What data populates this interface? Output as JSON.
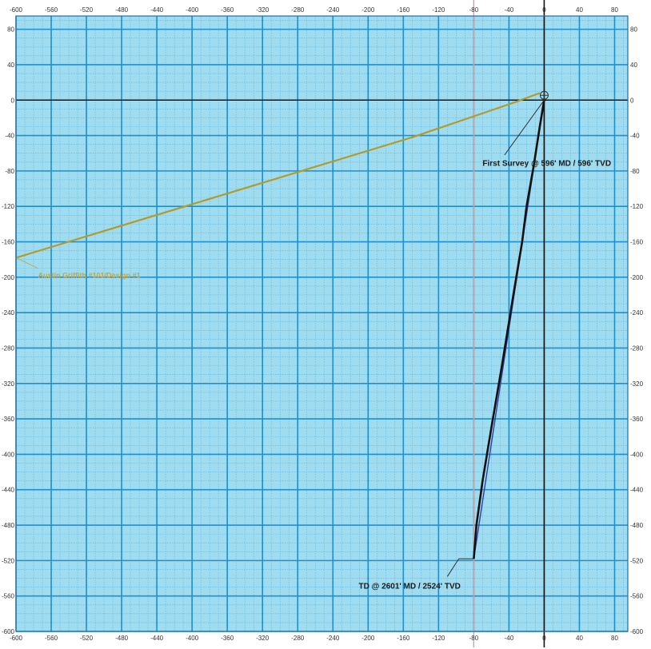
{
  "chart_data": {
    "type": "line",
    "title": "",
    "xlabel": "",
    "ylabel": "",
    "xlim": [
      -600,
      95
    ],
    "ylim": [
      -600,
      95
    ],
    "grid": true,
    "x_ticks": [
      -600,
      -560,
      -520,
      -480,
      -440,
      -400,
      -360,
      -320,
      -280,
      -240,
      -200,
      -160,
      -120,
      -80,
      -40,
      0,
      40,
      80
    ],
    "y_ticks": [
      80,
      40,
      0,
      -40,
      -80,
      -120,
      -160,
      -200,
      -240,
      -280,
      -320,
      -360,
      -400,
      -440,
      -480,
      -520,
      -560,
      -600
    ],
    "vertical_reference_x": -80,
    "series": [
      {
        "color": "#b59a2a",
        "points": [
          [
            -600,
            -178
          ],
          [
            -150,
            -42
          ],
          [
            -35,
            -3
          ],
          [
            -5,
            8
          ]
        ]
      },
      {
        "color": "#2b3fa8",
        "points": [
          [
            0,
            0
          ],
          [
            -40,
            -258
          ],
          [
            -80,
            -518
          ]
        ]
      },
      {
        "color": "#111111",
        "points": [
          [
            0,
            0
          ],
          [
            -5,
            -30
          ],
          [
            -12,
            -75
          ],
          [
            -20,
            -120
          ],
          [
            -25,
            -160
          ],
          [
            -35,
            -220
          ],
          [
            -48,
            -300
          ],
          [
            -60,
            -370
          ],
          [
            -70,
            -430
          ],
          [
            -77,
            -480
          ],
          [
            -80,
            -518
          ]
        ]
      }
    ],
    "annotations": [
      {
        "text": "First Survey @ 596' MD / 596' TVD",
        "point": [
          0,
          0
        ],
        "label_anchor": [
          -70,
          -65
        ]
      },
      {
        "text": "TD @ 2601' MD / 2524' TVD",
        "point": [
          -80,
          -518
        ],
        "label_anchor": [
          -95,
          -548
        ]
      },
      {
        "text": "Austin Griffith #101/Design #1",
        "point": [
          -600,
          -178
        ],
        "label_anchor": [
          -575,
          -195
        ]
      }
    ]
  },
  "colors": {
    "background": "#9fdcf0",
    "grid_major": "#1e8fcf",
    "grid_minor": "#5ab6e2",
    "axis": "#111111",
    "plan_line": "#b59a2a",
    "plan_label": "#c9a63a",
    "ref_line": "#b9a9b3"
  }
}
